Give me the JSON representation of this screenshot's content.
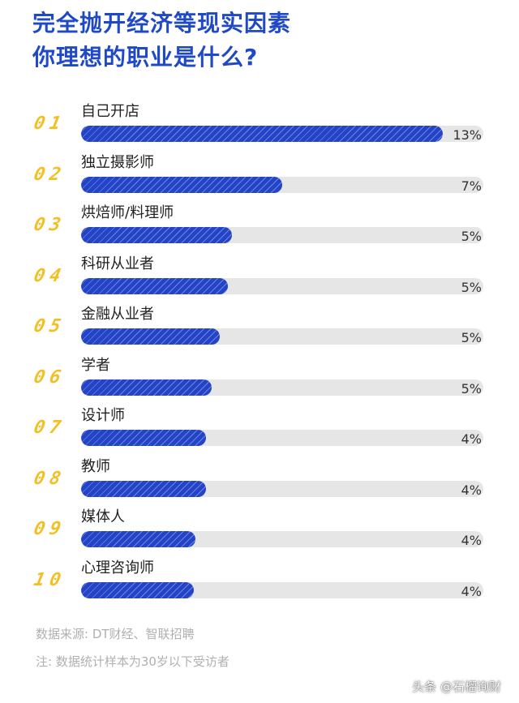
{
  "title_lines": [
    "完全抛开经济等现实因素",
    "你理想的职业是什么?"
  ],
  "chart_data": {
    "type": "bar",
    "orientation": "horizontal",
    "title": "完全抛开经济等现实因素 你理想的职业是什么?",
    "ranks": [
      "01",
      "02",
      "03",
      "04",
      "05",
      "06",
      "07",
      "08",
      "09",
      "10"
    ],
    "categories": [
      "自己开店",
      "独立摄影师",
      "烘焙师/料理师",
      "科研从业者",
      "金融从业者",
      "学者",
      "设计师",
      "教师",
      "媒体人",
      "心理咨询师"
    ],
    "values": [
      13,
      7,
      5,
      5,
      5,
      5,
      4,
      4,
      4,
      4
    ],
    "bar_fill_fraction": [
      0.9,
      0.5,
      0.375,
      0.365,
      0.345,
      0.325,
      0.31,
      0.31,
      0.285,
      0.28
    ],
    "value_labels": [
      "13%",
      "7%",
      "5%",
      "5%",
      "5%",
      "5%",
      "4%",
      "4%",
      "4%",
      "4%"
    ],
    "unit": "%",
    "grid": false,
    "legend": "none"
  },
  "footnotes": {
    "source": "数据来源: DT财经、智联招聘",
    "note": "注: 数据统计样本为30岁以下受访者"
  },
  "watermark": "头条 @石榴询财",
  "colors": {
    "title": "#1f49c6",
    "bar": "#2344c7",
    "track": "#e6e6e6",
    "rank": "#f2c025"
  }
}
